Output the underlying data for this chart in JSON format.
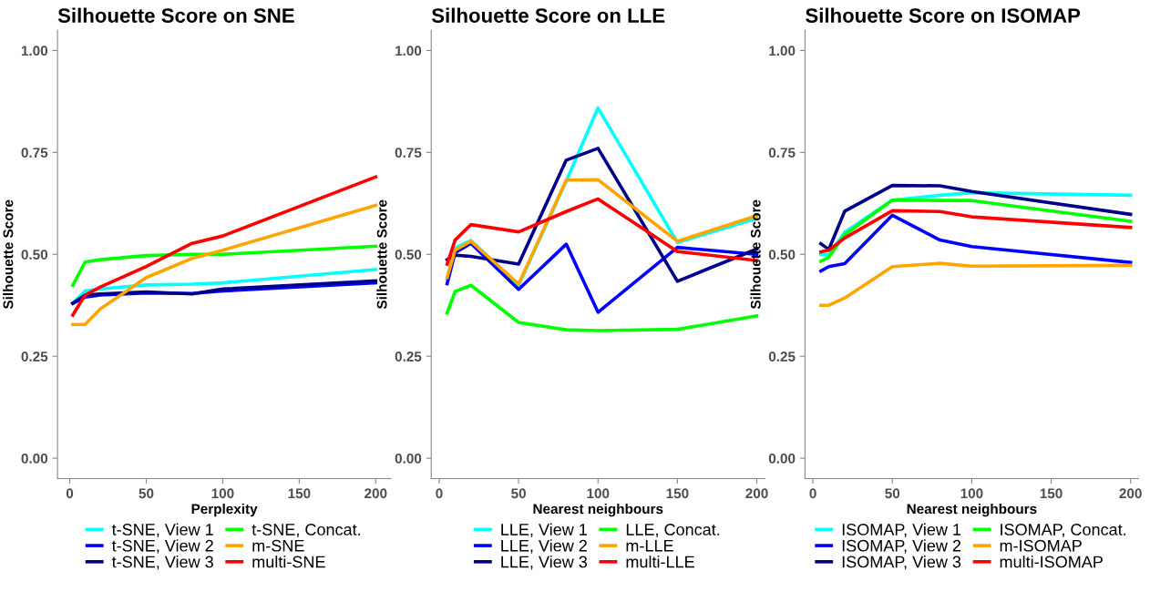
{
  "chart_data": [
    {
      "type": "line",
      "title": "Silhouette Score on SNE",
      "xlabel": "Perplexity",
      "ylabel": "Silhouette Score",
      "x": [
        2,
        10,
        20,
        50,
        80,
        100,
        200
      ],
      "xlim": [
        -8,
        210
      ],
      "ylim": [
        -0.05,
        1.05
      ],
      "xticks": [
        0,
        50,
        100,
        150,
        200
      ],
      "yticks": [
        {
          "value": 0,
          "label": "0.00"
        },
        {
          "value": 0.25,
          "label": "0.25"
        },
        {
          "value": 0.5,
          "label": "0.50"
        },
        {
          "value": 0.75,
          "label": "0.75"
        },
        {
          "value": 1,
          "label": "1.00"
        }
      ],
      "grid": false,
      "legend": "bottom",
      "line_style": "solid",
      "marker": "none",
      "series": [
        {
          "name": "t-SNE, View 1",
          "color": "#00ffff",
          "values": [
            0.38,
            0.41,
            0.415,
            0.425,
            0.427,
            0.43,
            0.463
          ]
        },
        {
          "name": "t-SNE, View 2",
          "color": "#0000ff",
          "values": [
            0.38,
            0.395,
            0.4,
            0.405,
            0.404,
            0.41,
            0.43
          ]
        },
        {
          "name": "t-SNE, View 3",
          "color": "#00008b",
          "values": [
            0.38,
            0.4,
            0.403,
            0.408,
            0.403,
            0.415,
            0.435
          ]
        },
        {
          "name": "t-SNE, Concat.",
          "color": "#00ff00",
          "values": [
            0.424,
            0.481,
            0.487,
            0.497,
            0.5,
            0.5,
            0.52
          ]
        },
        {
          "name": "m-SNE",
          "color": "#ffa500",
          "values": [
            0.328,
            0.328,
            0.366,
            0.443,
            0.49,
            0.51,
            0.62
          ]
        },
        {
          "name": "multi-SNE",
          "color": "#ff0000",
          "values": [
            0.351,
            0.4,
            0.42,
            0.47,
            0.527,
            0.545,
            0.69
          ]
        }
      ]
    },
    {
      "type": "line",
      "title": "Silhouette Score on LLE",
      "xlabel": "Nearest neighbours",
      "ylabel": "Silhouette Score",
      "x": [
        5,
        10,
        20,
        50,
        80,
        100,
        150,
        200
      ],
      "xlim": [
        -5,
        205
      ],
      "ylim": [
        -0.05,
        1.05
      ],
      "xticks": [
        0,
        50,
        100,
        150,
        200
      ],
      "yticks": [
        {
          "value": 0,
          "label": "0.00"
        },
        {
          "value": 0.25,
          "label": "0.25"
        },
        {
          "value": 0.5,
          "label": "0.50"
        },
        {
          "value": 0.75,
          "label": "0.75"
        },
        {
          "value": 1,
          "label": "1.00"
        }
      ],
      "grid": false,
      "legend": "bottom",
      "line_style": "solid",
      "marker": "none",
      "series": [
        {
          "name": "LLE, View 1",
          "color": "#00ffff",
          "values": [
            0.44,
            0.516,
            0.534,
            0.424,
            0.68,
            0.859,
            0.529,
            0.588
          ]
        },
        {
          "name": "LLE, View 2",
          "color": "#0000ff",
          "values": [
            0.428,
            0.504,
            0.527,
            0.414,
            0.525,
            0.358,
            0.517,
            0.5
          ]
        },
        {
          "name": "LLE, View 3",
          "color": "#00008b",
          "values": [
            0.487,
            0.498,
            0.495,
            0.476,
            0.731,
            0.76,
            0.434,
            0.513
          ]
        },
        {
          "name": "LLE, Concat.",
          "color": "#00ff00",
          "values": [
            0.356,
            0.409,
            0.424,
            0.333,
            0.315,
            0.313,
            0.316,
            0.349
          ]
        },
        {
          "name": "m-LLE",
          "color": "#ffa500",
          "values": [
            0.443,
            0.51,
            0.532,
            0.427,
            0.682,
            0.683,
            0.532,
            0.595
          ]
        },
        {
          "name": "multi-LLE",
          "color": "#ff0000",
          "values": [
            0.476,
            0.535,
            0.573,
            0.555,
            0.605,
            0.636,
            0.507,
            0.485
          ]
        }
      ]
    },
    {
      "type": "line",
      "title": "Silhouette Score on ISOMAP",
      "xlabel": "Nearest neighbours",
      "ylabel": "Silhouette Score",
      "x": [
        5,
        10,
        20,
        50,
        80,
        100,
        200
      ],
      "xlim": [
        -5,
        205
      ],
      "ylim": [
        -0.05,
        1.05
      ],
      "xticks": [
        0,
        50,
        100,
        150,
        200
      ],
      "yticks": [
        {
          "value": 0,
          "label": "0.00"
        },
        {
          "value": 0.25,
          "label": "0.25"
        },
        {
          "value": 0.5,
          "label": "0.50"
        },
        {
          "value": 0.75,
          "label": "0.75"
        },
        {
          "value": 1,
          "label": "1.00"
        }
      ],
      "grid": false,
      "legend": "bottom",
      "line_style": "solid",
      "marker": "none",
      "series": [
        {
          "name": "ISOMAP, View 1",
          "color": "#00ffff",
          "values": [
            0.5,
            0.498,
            0.554,
            0.633,
            0.645,
            0.651,
            0.645
          ]
        },
        {
          "name": "ISOMAP, View 2",
          "color": "#0000ff",
          "values": [
            0.459,
            0.47,
            0.477,
            0.596,
            0.535,
            0.519,
            0.48
          ]
        },
        {
          "name": "ISOMAP, View 3",
          "color": "#00008b",
          "values": [
            0.526,
            0.512,
            0.606,
            0.669,
            0.668,
            0.654,
            0.598
          ]
        },
        {
          "name": "ISOMAP, Concat.",
          "color": "#00ff00",
          "values": [
            0.483,
            0.493,
            0.548,
            0.633,
            0.632,
            0.632,
            0.581
          ]
        },
        {
          "name": "m-ISOMAP",
          "color": "#ffa500",
          "values": [
            0.375,
            0.375,
            0.393,
            0.47,
            0.478,
            0.471,
            0.473
          ]
        },
        {
          "name": "multi-ISOMAP",
          "color": "#ff0000",
          "values": [
            0.506,
            0.51,
            0.54,
            0.607,
            0.605,
            0.592,
            0.566
          ]
        }
      ]
    }
  ]
}
